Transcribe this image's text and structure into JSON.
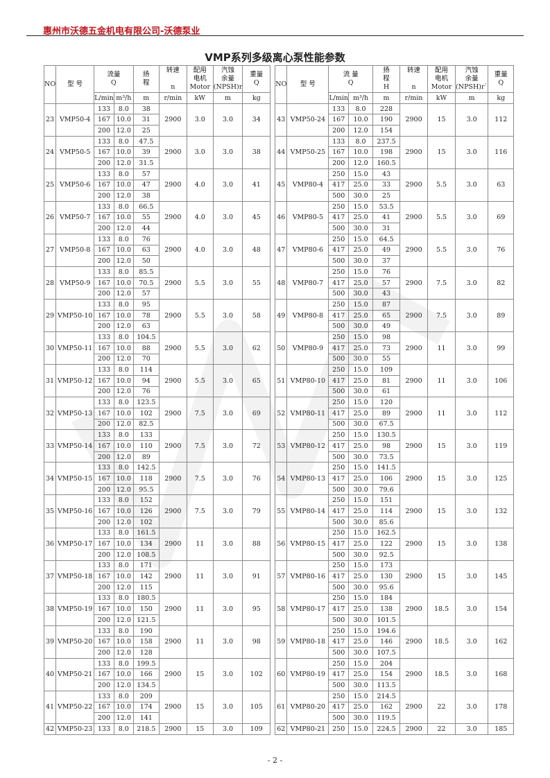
{
  "header": {
    "company": "惠州市沃德五金机电有限公司-沃德泵业"
  },
  "title": "VMP系列多级离心泵性能参数",
  "columns": {
    "left": [
      "NO",
      "型  号",
      "流量\nQ",
      "扬\n程",
      "转速\n\nn",
      "配用\n电机\nMotor",
      "汽蚀\n余量\n(NPSH)r",
      "重量\nQ"
    ],
    "right": [
      "NO",
      "型 号",
      "流 量\nQ",
      "扬\n程\nH",
      "转速\n\nn",
      "配用\n电机\nMotor",
      "汽蚀\n余量\n(NPSH)r`",
      "重量\nQ"
    ],
    "units": [
      "L/min",
      "m³/h",
      "m",
      "r/min",
      "kW",
      "m",
      "kg"
    ]
  },
  "left": [
    {
      "no": "23",
      "model": "VMP50-4",
      "lmin": [
        "133",
        "167",
        "200"
      ],
      "m3h": [
        "8.0",
        "10.0",
        "12.0"
      ],
      "head": [
        "38",
        "31",
        "25"
      ],
      "n": "2900",
      "kw": "3.0",
      "npsh": "3.0",
      "kg": "34"
    },
    {
      "no": "24",
      "model": "VMP50-5",
      "lmin": [
        "133",
        "167",
        "200"
      ],
      "m3h": [
        "8.0",
        "10.0",
        "12.0"
      ],
      "head": [
        "47.5",
        "39",
        "31.5"
      ],
      "n": "2900",
      "kw": "3.0",
      "npsh": "3.0",
      "kg": "38"
    },
    {
      "no": "25",
      "model": "VMP50-6",
      "lmin": [
        "133",
        "167",
        "200"
      ],
      "m3h": [
        "8.0",
        "10.0",
        "12.0"
      ],
      "head": [
        "57",
        "47",
        "38"
      ],
      "n": "2900",
      "kw": "4.0",
      "npsh": "3.0",
      "kg": "41"
    },
    {
      "no": "26",
      "model": "VMP50-7",
      "lmin": [
        "133",
        "167",
        "200"
      ],
      "m3h": [
        "8.0",
        "10.0",
        "12.0"
      ],
      "head": [
        "66.5",
        "55",
        "44"
      ],
      "n": "2900",
      "kw": "4.0",
      "npsh": "3.0",
      "kg": "45"
    },
    {
      "no": "27",
      "model": "VMP50-8",
      "lmin": [
        "133",
        "167",
        "200"
      ],
      "m3h": [
        "8.0",
        "10.0",
        "12.0"
      ],
      "head": [
        "76",
        "63",
        "50"
      ],
      "n": "2900",
      "kw": "4.0",
      "npsh": "3.0",
      "kg": "48"
    },
    {
      "no": "28",
      "model": "VMP50-9",
      "lmin": [
        "133",
        "167",
        "200"
      ],
      "m3h": [
        "8.0",
        "10.0",
        "12.0"
      ],
      "head": [
        "85.5",
        "70.5",
        "57"
      ],
      "n": "2900",
      "kw": "5.5",
      "npsh": "3.0",
      "kg": "55"
    },
    {
      "no": "29",
      "model": "VMP50-10",
      "lmin": [
        "133",
        "167",
        "200"
      ],
      "m3h": [
        "8.0",
        "10.0",
        "12.0"
      ],
      "head": [
        "95",
        "78",
        "63"
      ],
      "n": "2900",
      "kw": "5.5",
      "npsh": "3.0",
      "kg": "58"
    },
    {
      "no": "30",
      "model": "VMP50-11",
      "lmin": [
        "133",
        "167",
        "200"
      ],
      "m3h": [
        "8.0",
        "10.0",
        "12.0"
      ],
      "head": [
        "104.5",
        "88",
        "70"
      ],
      "n": "2900",
      "kw": "5.5",
      "npsh": "3.0",
      "kg": "62"
    },
    {
      "no": "31",
      "model": "VMP50-12",
      "lmin": [
        "133",
        "167",
        "200"
      ],
      "m3h": [
        "8.0",
        "10.0",
        "12.0"
      ],
      "head": [
        "114",
        "94",
        "76"
      ],
      "n": "2900",
      "kw": "5.5",
      "npsh": "3.0",
      "kg": "65"
    },
    {
      "no": "32",
      "model": "VMP50-13",
      "lmin": [
        "133",
        "167",
        "200"
      ],
      "m3h": [
        "8.0",
        "10.0",
        "12.0"
      ],
      "head": [
        "123.5",
        "102",
        "82.5"
      ],
      "n": "2900",
      "kw": "7.5",
      "npsh": "3.0",
      "kg": "69"
    },
    {
      "no": "33",
      "model": "VMP50-14",
      "lmin": [
        "133",
        "167",
        "200"
      ],
      "m3h": [
        "8.0",
        "10.0",
        "12.0"
      ],
      "head": [
        "133",
        "110",
        "89"
      ],
      "n": "2900",
      "kw": "7.5",
      "npsh": "3.0",
      "kg": "72"
    },
    {
      "no": "34",
      "model": "VMP50-15",
      "lmin": [
        "133",
        "167",
        "200"
      ],
      "m3h": [
        "8.0",
        "10.0",
        "12.0"
      ],
      "head": [
        "142.5",
        "118",
        "95.5"
      ],
      "n": "2900",
      "kw": "7.5",
      "npsh": "3.0",
      "kg": "76"
    },
    {
      "no": "35",
      "model": "VMP50-16",
      "lmin": [
        "133",
        "167",
        "200"
      ],
      "m3h": [
        "8.0",
        "10.0",
        "12.0"
      ],
      "head": [
        "152",
        "126",
        "102"
      ],
      "n": "2900",
      "kw": "7.5",
      "npsh": "3.0",
      "kg": "79"
    },
    {
      "no": "36",
      "model": "VMP50-17",
      "lmin": [
        "133",
        "167",
        "200"
      ],
      "m3h": [
        "8.0",
        "10.0",
        "12.0"
      ],
      "head": [
        "161.5",
        "134",
        "108.5"
      ],
      "n": "2900",
      "kw": "11",
      "npsh": "3.0",
      "kg": "88"
    },
    {
      "no": "37",
      "model": "VMP50-18",
      "lmin": [
        "133",
        "167",
        "200"
      ],
      "m3h": [
        "8.0",
        "10.0",
        "12.0"
      ],
      "head": [
        "171",
        "142",
        "115"
      ],
      "n": "2900",
      "kw": "11",
      "npsh": "3.0",
      "kg": "91"
    },
    {
      "no": "38",
      "model": "VMP50-19",
      "lmin": [
        "133",
        "167",
        "200"
      ],
      "m3h": [
        "8.0",
        "10.0",
        "12.0"
      ],
      "head": [
        "180.5",
        "150",
        "121.5"
      ],
      "n": "2900",
      "kw": "11",
      "npsh": "3.0",
      "kg": "95"
    },
    {
      "no": "39",
      "model": "VMP50-20",
      "lmin": [
        "133",
        "167",
        "200"
      ],
      "m3h": [
        "8.0",
        "10.0",
        "12.0"
      ],
      "head": [
        "190",
        "158",
        "128"
      ],
      "n": "2900",
      "kw": "11",
      "npsh": "3.0",
      "kg": "98"
    },
    {
      "no": "40",
      "model": "VMP50-21",
      "lmin": [
        "133",
        "167",
        "200"
      ],
      "m3h": [
        "8.0",
        "10.0",
        "12.0"
      ],
      "head": [
        "199.5",
        "166",
        "134.5"
      ],
      "n": "2900",
      "kw": "15",
      "npsh": "3.0",
      "kg": "102"
    },
    {
      "no": "41",
      "model": "VMP50-22",
      "lmin": [
        "133",
        "167",
        "200"
      ],
      "m3h": [
        "8.0",
        "10.0",
        "12.0"
      ],
      "head": [
        "209",
        "174",
        "141"
      ],
      "n": "2900",
      "kw": "15",
      "npsh": "3.0",
      "kg": "105"
    },
    {
      "no": "42",
      "model": "VMP50-23",
      "lmin": [
        "133"
      ],
      "m3h": [
        "8.0"
      ],
      "head": [
        "218.5"
      ],
      "n": "2900",
      "kw": "15",
      "npsh": "3.0",
      "kg": "109"
    }
  ],
  "right": [
    {
      "no": "43",
      "model": "VMP50-24",
      "lmin": [
        "133",
        "167",
        "200"
      ],
      "m3h": [
        "8.0",
        "10.0",
        "12.0"
      ],
      "head": [
        "228",
        "190",
        "154"
      ],
      "n": "2900",
      "kw": "15",
      "npsh": "3.0",
      "kg": "112"
    },
    {
      "no": "44",
      "model": "VMP50-25",
      "lmin": [
        "133",
        "167",
        "200"
      ],
      "m3h": [
        "8.0",
        "10.0",
        "12.0"
      ],
      "head": [
        "237.5",
        "198",
        "160.5"
      ],
      "n": "2900",
      "kw": "15",
      "npsh": "3.0",
      "kg": "116"
    },
    {
      "no": "45",
      "model": "VMP80-4",
      "lmin": [
        "250",
        "417",
        "500"
      ],
      "m3h": [
        "15.0",
        "25.0",
        "30.0"
      ],
      "head": [
        "43",
        "33",
        "25"
      ],
      "n": "2900",
      "kw": "5.5",
      "npsh": "3.0",
      "kg": "63"
    },
    {
      "no": "46",
      "model": "VMP80-5",
      "lmin": [
        "250",
        "417",
        "500"
      ],
      "m3h": [
        "15.0",
        "25.0",
        "30.0"
      ],
      "head": [
        "53.5",
        "41",
        "31"
      ],
      "n": "2900",
      "kw": "5.5",
      "npsh": "3.0",
      "kg": "69"
    },
    {
      "no": "47",
      "model": "VMP80-6",
      "lmin": [
        "250",
        "417",
        "500"
      ],
      "m3h": [
        "15.0",
        "25.0",
        "30.0"
      ],
      "head": [
        "64.5",
        "49",
        "37"
      ],
      "n": "2900",
      "kw": "5.5",
      "npsh": "3.0",
      "kg": "76"
    },
    {
      "no": "48",
      "model": "VMP80-7",
      "lmin": [
        "250",
        "417",
        "500"
      ],
      "m3h": [
        "15.0",
        "25.0",
        "30.0"
      ],
      "head": [
        "76",
        "57",
        "43"
      ],
      "n": "2900",
      "kw": "7.5",
      "npsh": "3.0",
      "kg": "82"
    },
    {
      "no": "49",
      "model": "VMP80-8",
      "lmin": [
        "250",
        "417",
        "500"
      ],
      "m3h": [
        "15.0",
        "25.0",
        "30.0"
      ],
      "head": [
        "87",
        "65",
        "49"
      ],
      "n": "2900",
      "kw": "7.5",
      "npsh": "3.0",
      "kg": "89"
    },
    {
      "no": "50",
      "model": "VMP80-9",
      "lmin": [
        "250",
        "417",
        "500"
      ],
      "m3h": [
        "15.0",
        "25.0",
        "30.0"
      ],
      "head": [
        "98",
        "73",
        "55"
      ],
      "n": "2900",
      "kw": "11",
      "npsh": "3.0",
      "kg": "99"
    },
    {
      "no": "51",
      "model": "VMP80-10",
      "lmin": [
        "250",
        "417",
        "500"
      ],
      "m3h": [
        "15.0",
        "25.0",
        "30.0"
      ],
      "head": [
        "109",
        "81",
        "61"
      ],
      "n": "2900",
      "kw": "11",
      "npsh": "3.0",
      "kg": "106"
    },
    {
      "no": "52",
      "model": "VMP80-11",
      "lmin": [
        "250",
        "417",
        "500"
      ],
      "m3h": [
        "15.0",
        "25.0",
        "30.0"
      ],
      "head": [
        "120",
        "89",
        "67.5"
      ],
      "n": "2900",
      "kw": "11",
      "npsh": "3.0",
      "kg": "112"
    },
    {
      "no": "53",
      "model": "VMP80-12",
      "lmin": [
        "250",
        "417",
        "500"
      ],
      "m3h": [
        "15.0",
        "25.0",
        "30.0"
      ],
      "head": [
        "130.5",
        "98",
        "73.5"
      ],
      "n": "2900",
      "kw": "15",
      "npsh": "3.0",
      "kg": "119"
    },
    {
      "no": "54",
      "model": "VMP80-13",
      "lmin": [
        "250",
        "417",
        "500"
      ],
      "m3h": [
        "15.0",
        "25.0",
        "30.0"
      ],
      "head": [
        "141.5",
        "106",
        "79.6"
      ],
      "n": "2900",
      "kw": "15",
      "npsh": "3.0",
      "kg": "125"
    },
    {
      "no": "55",
      "model": "VMP80-14",
      "lmin": [
        "250",
        "417",
        "500"
      ],
      "m3h": [
        "15.0",
        "25.0",
        "30.0"
      ],
      "head": [
        "151",
        "114",
        "85.6"
      ],
      "n": "2900",
      "kw": "15",
      "npsh": "3.0",
      "kg": "132"
    },
    {
      "no": "56",
      "model": "VMP80-15",
      "lmin": [
        "250",
        "417",
        "500"
      ],
      "m3h": [
        "15.0",
        "25.0",
        "30.0"
      ],
      "head": [
        "162.5",
        "122",
        "92.5"
      ],
      "n": "2900",
      "kw": "15",
      "npsh": "3.0",
      "kg": "138"
    },
    {
      "no": "57",
      "model": "VMP80-16",
      "lmin": [
        "250",
        "417",
        "500"
      ],
      "m3h": [
        "15.0",
        "25.0",
        "30.0"
      ],
      "head": [
        "173",
        "130",
        "95.6"
      ],
      "n": "2900",
      "kw": "15",
      "npsh": "3.0",
      "kg": "145"
    },
    {
      "no": "58",
      "model": "VMP80-17",
      "lmin": [
        "250",
        "417",
        "500"
      ],
      "m3h": [
        "15.0",
        "25.0",
        "30.0"
      ],
      "head": [
        "184",
        "138",
        "101.5"
      ],
      "n": "2900",
      "kw": "18.5",
      "npsh": "3.0",
      "kg": "154"
    },
    {
      "no": "59",
      "model": "VMP80-18",
      "lmin": [
        "250",
        "417",
        "500"
      ],
      "m3h": [
        "15.0",
        "25.0",
        "30.0"
      ],
      "head": [
        "194.6",
        "146",
        "107.5"
      ],
      "n": "2900",
      "kw": "18.5",
      "npsh": "3.0",
      "kg": "162"
    },
    {
      "no": "60",
      "model": "VMP80-19",
      "lmin": [
        "250",
        "417",
        "500"
      ],
      "m3h": [
        "15.0",
        "25.0",
        "30.0"
      ],
      "head": [
        "204",
        "154",
        "113.5"
      ],
      "n": "2900",
      "kw": "18.5",
      "npsh": "3.0",
      "kg": "168"
    },
    {
      "no": "61",
      "model": "VMP80-20",
      "lmin": [
        "250",
        "417",
        "500"
      ],
      "m3h": [
        "15.0",
        "25.0",
        "30.0"
      ],
      "head": [
        "214.5",
        "162",
        "119.5"
      ],
      "n": "2900",
      "kw": "22",
      "npsh": "3.0",
      "kg": "178"
    },
    {
      "no": "62",
      "model": "VMP80-21",
      "lmin": [
        "250"
      ],
      "m3h": [
        "15.0"
      ],
      "head": [
        "224.5"
      ],
      "n": "2900",
      "kw": "22",
      "npsh": "3.0",
      "kg": "185"
    }
  ],
  "footer": {
    "page_number": "- 2 -"
  }
}
